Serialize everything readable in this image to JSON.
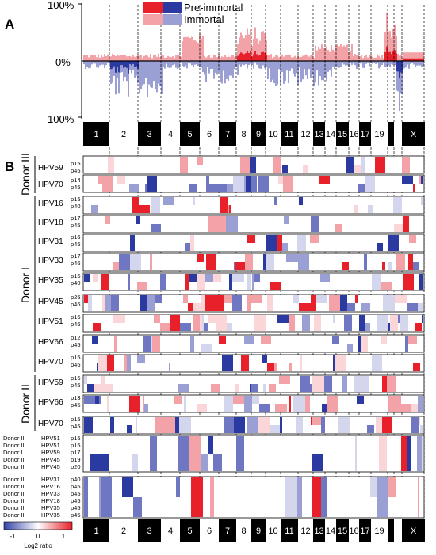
{
  "panel_a": {
    "label": "A",
    "y_ticks": [
      "100%",
      "0%",
      "100%"
    ],
    "legend": [
      {
        "label": "Pre-immortal",
        "gain_color": "#e8202a",
        "loss_color": "#2b3aa0"
      },
      {
        "label": "Immortal",
        "gain_color": "#f3a3a8",
        "loss_color": "#9a9fd4"
      }
    ]
  },
  "panel_b": {
    "label": "B"
  },
  "chromosomes": [
    "1",
    "2",
    "3",
    "4",
    "5",
    "6",
    "7",
    "8",
    "9",
    "10",
    "11",
    "12",
    "13",
    "14",
    "15",
    "16",
    "17",
    "19",
    "",
    "X"
  ],
  "groups": {
    "donor3": "Donor III",
    "donor1": "Donor I",
    "donor2": "Donor II"
  },
  "rows": [
    {
      "name": "HPV59",
      "p1": "p15",
      "p2": "p45"
    },
    {
      "name": "HPV70",
      "p1": "p14",
      "p2": "p45"
    },
    {
      "name": "HPV16",
      "p1": "p15",
      "p2": "p40"
    },
    {
      "name": "HPV18",
      "p1": "p17",
      "p2": "p45"
    },
    {
      "name": "HPV31",
      "p1": "p16",
      "p2": "p45"
    },
    {
      "name": "HPV33",
      "p1": "p17",
      "p2": "p46"
    },
    {
      "name": "HPV35",
      "p1": "p15",
      "p2": "p40"
    },
    {
      "name": "HPV45",
      "p1": "p25",
      "p2": "p46"
    },
    {
      "name": "HPV51",
      "p1": "p15",
      "p2": "p46"
    },
    {
      "name": "HPV66",
      "p1": "p12",
      "p2": "p45"
    },
    {
      "name": "HPV70",
      "p1": "p15",
      "p2": "p46"
    },
    {
      "name": "HPV59",
      "p1": "p15",
      "p2": "p45"
    },
    {
      "name": "HPV66",
      "p1": "p13",
      "p2": "p45"
    },
    {
      "name": "HPV70",
      "p1": "p15",
      "p2": "p45"
    }
  ],
  "bottom_rows_1": [
    {
      "donor": "Donor II",
      "hpv": "HPV51",
      "p": "p15"
    },
    {
      "donor": "Donor III",
      "hpv": "HPV51",
      "p": "p15"
    },
    {
      "donor": "Donor I",
      "hpv": "HPV59",
      "p": "p17"
    },
    {
      "donor": "Donor III",
      "hpv": "HPV45",
      "p": "p19"
    },
    {
      "donor": "Donor II",
      "hpv": "HPV45",
      "p": "p20"
    }
  ],
  "bottom_rows_2": [
    {
      "donor": "Donor II",
      "hpv": "HPV31",
      "p": "p40"
    },
    {
      "donor": "Donor II",
      "hpv": "HPV16",
      "p": "p45"
    },
    {
      "donor": "Donor III",
      "hpv": "HPV33",
      "p": "p45"
    },
    {
      "donor": "Donor II",
      "hpv": "HPV18",
      "p": "p45"
    },
    {
      "donor": "Donor II",
      "hpv": "HPV35",
      "p": "p45"
    },
    {
      "donor": "Donor III",
      "hpv": "HPV35",
      "p": "p45"
    }
  ],
  "colorbar": {
    "min": "-1",
    "mid": "0",
    "max": "1",
    "label": "Log2 ratio"
  }
}
